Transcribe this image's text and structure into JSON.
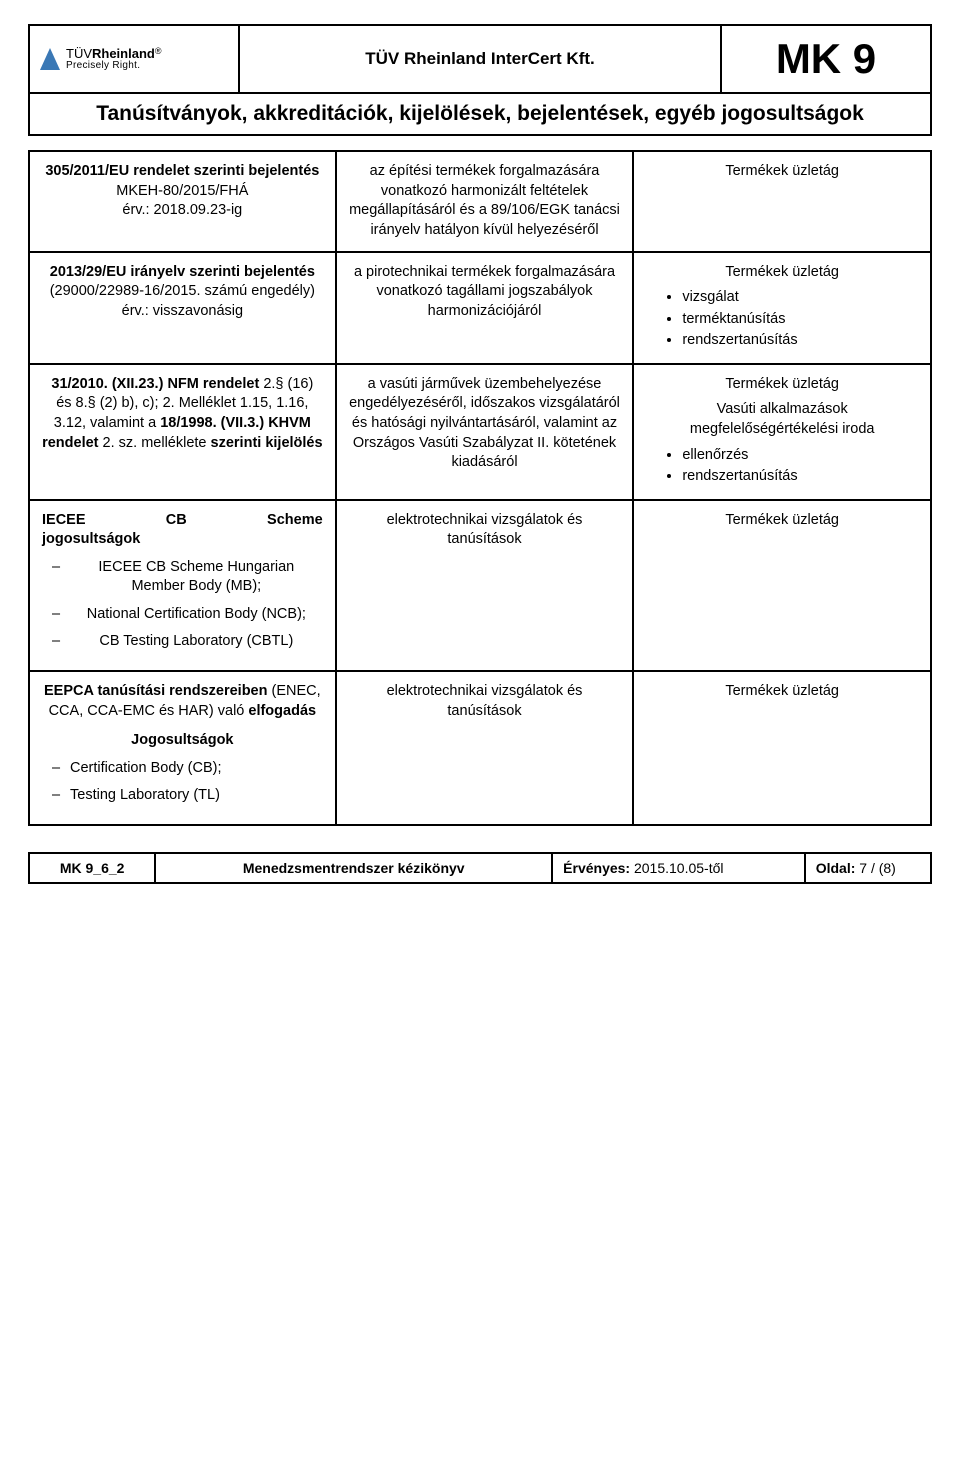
{
  "header": {
    "logo_name": "TÜVRheinland",
    "logo_tagline": "Precisely Right.",
    "company": "TÜV Rheinland InterCert Kft.",
    "doc_code": "MK 9",
    "subtitle": "Tanúsítványok, akkreditációk, kijelölések, bejelentések, egyéb jogosultságok"
  },
  "colors": {
    "logo_blue": "#3a78b5",
    "text": "#000000",
    "border": "#000000"
  },
  "rows": [
    {
      "c1_lines": [
        {
          "t": "305/2011/EU rendelet szerinti bejelentés",
          "b": true
        },
        {
          "t": "MKEH-80/2015/FHÁ",
          "b": false
        },
        {
          "t": "érv.: 2018.09.23-ig",
          "b": false
        }
      ],
      "c2": "az építési termékek forgalmazására vonatkozó harmonizált feltételek megállapításáról és a 89/106/EGK tanácsi irányelv hatályon kívül helyezéséről",
      "c3_top": "Termékek üzletág",
      "c3_bullets": []
    },
    {
      "c1_lines": [
        {
          "t": "2013/29/EU irányelv szerinti bejelentés",
          "b": true
        },
        {
          "t": "(29000/22989-16/2015. számú engedély)",
          "b": false
        },
        {
          "t": "érv.: visszavonásig",
          "b": false
        }
      ],
      "c2": "a pirotechnikai termékek forgalmazására vonatkozó tagállami jogszabályok harmonizációjáról",
      "c3_top": "Termékek üzletág",
      "c3_bullets": [
        "vizsgálat",
        "terméktanúsítás",
        "rendszertanúsítás"
      ]
    },
    {
      "c1_html": "<span class='bold'>31/2010. (XII.23.) NFM rendelet</span> 2.§ (16) és 8.§ (2) b), c); 2. Melléklet 1.15, 1.16, 3.12, valamint a <span class='bold'>18/1998. (VII.3.) KHVM rendelet</span> 2. sz. melléklete <span class='bold'>szerinti kijelölés</span>",
      "c2": "a vasúti járművek üzembehelyezése engedélyezéséről, időszakos vizsgálatáról és hatósági nyilvántartásáról, valamint az Országos Vasúti Szabályzat II. kötetének kiadásáról",
      "c3_top": "Termékek üzletág",
      "c3_sub": "Vasúti alkalmazások megfelelőségértékelési iroda",
      "c3_bullets": [
        "ellenőrzés",
        "rendszertanúsítás"
      ]
    },
    {
      "c1_toprow_l": "IECEE",
      "c1_toprow_m": "CB",
      "c1_toprow_r": "Scheme",
      "c1_toprow2": "jogosultságok",
      "c1_dashes": [
        "IECEE CB Scheme Hungarian Member Body (MB);",
        "National Certification Body (NCB);",
        "CB Testing Laboratory (CBTL)"
      ],
      "c2": "elektrotechnikai vizsgálatok és tanúsítások",
      "c3_top": "Termékek üzletág",
      "c3_bullets": []
    },
    {
      "c1_html": "<span class='bold'>EEPCA tanúsítási rendszereiben</span> (ENEC, CCA, CCA-EMC és HAR) való <span class='bold'>elfogadás</span>",
      "c1_sub_bold": "Jogosultságok",
      "c1_dashes_la": [
        "Certification Body (CB);",
        "Testing Laboratory (TL)"
      ],
      "c2": "elektrotechnikai vizsgálatok és tanúsítások",
      "c3_top": "Termékek üzletág",
      "c3_bullets": []
    }
  ],
  "footer": {
    "code": "MK 9_6_2",
    "title": "Menedzsmentrendszer kézikönyv",
    "valid_label": "Érvényes:",
    "valid_value": "2015.10.05-től",
    "page_label": "Oldal:",
    "page_value": "7 / (8)"
  }
}
